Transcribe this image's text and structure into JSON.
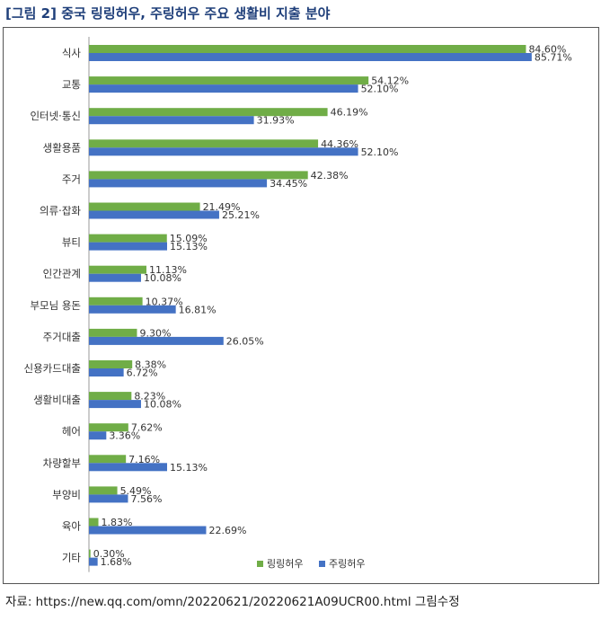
{
  "figure_title": "[그림 2] 중국 링링허우, 주링허우 주요 생활비 지출 분야",
  "source_note": "자료: https://new.qq.com/omn/20220621/20220621A09UCR00.html 그림수정",
  "colors": {
    "series_a": "#70ad47",
    "series_b": "#4472c4",
    "title": "#1f3f7a",
    "frame": "#555555"
  },
  "chart_data": {
    "type": "bar",
    "orientation": "horizontal",
    "categories": [
      "식사",
      "교통",
      "인터넷·통신",
      "생활용품",
      "주거",
      "의류·잡화",
      "뷰티",
      "인간관계",
      "부모님 용돈",
      "주거대출",
      "신용카드대출",
      "생활비대출",
      "헤어",
      "차량할부",
      "부양비",
      "육아",
      "기타"
    ],
    "series": [
      {
        "name": "링링허우",
        "color": "#70ad47",
        "values": [
          84.6,
          54.12,
          46.19,
          44.36,
          42.38,
          21.49,
          15.09,
          11.13,
          10.37,
          9.3,
          8.38,
          8.23,
          7.62,
          7.16,
          5.49,
          1.83,
          0.3
        ],
        "labels": [
          "84.60%",
          "54.12%",
          "46.19%",
          "44.36%",
          "42.38%",
          "21.49%",
          "15.09%",
          "11.13%",
          "10.37%",
          "9.30%",
          "8.38%",
          "8.23%",
          "7.62%",
          "7.16%",
          "5.49%",
          "1.83%",
          "0.30%"
        ]
      },
      {
        "name": "주링허우",
        "color": "#4472c4",
        "values": [
          85.71,
          52.1,
          31.93,
          52.1,
          34.45,
          25.21,
          15.13,
          10.08,
          16.81,
          26.05,
          6.72,
          10.08,
          3.36,
          15.13,
          7.56,
          22.69,
          1.68
        ],
        "labels": [
          "85.71%",
          "52.10%",
          "31.93%",
          "52.10%",
          "34.45%",
          "25.21%",
          "15.13%",
          "10.08%",
          "16.81%",
          "26.05%",
          "6.72%",
          "10.08%",
          "3.36%",
          "15.13%",
          "7.56%",
          "22.69%",
          "1.68%"
        ]
      }
    ],
    "xlim": [
      0,
      100
    ],
    "grid": false,
    "legend_position": "bottom-right"
  }
}
